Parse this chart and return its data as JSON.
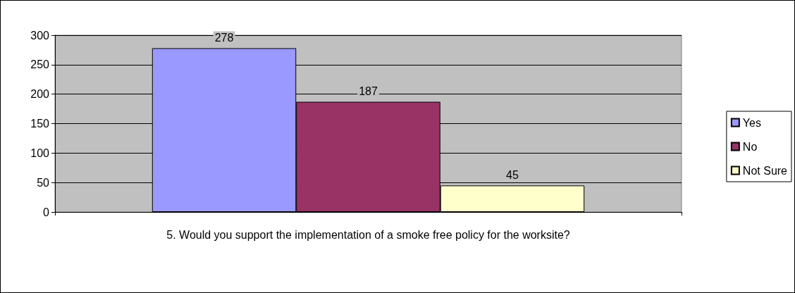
{
  "chart_data": {
    "type": "bar",
    "categories": [
      "5. Would you support the implementation of a smoke free policy for the worksite?"
    ],
    "series": [
      {
        "name": "Yes",
        "color": "#9999ff",
        "values": [
          278
        ]
      },
      {
        "name": "No",
        "color": "#993366",
        "values": [
          187
        ]
      },
      {
        "name": "Not Sure",
        "color": "#ffffcc",
        "values": [
          45
        ]
      }
    ],
    "ylim": [
      0,
      300
    ],
    "yticks": [
      0,
      50,
      100,
      150,
      200,
      250,
      300
    ],
    "grid": "y",
    "legend": "right",
    "data_labels": true
  }
}
